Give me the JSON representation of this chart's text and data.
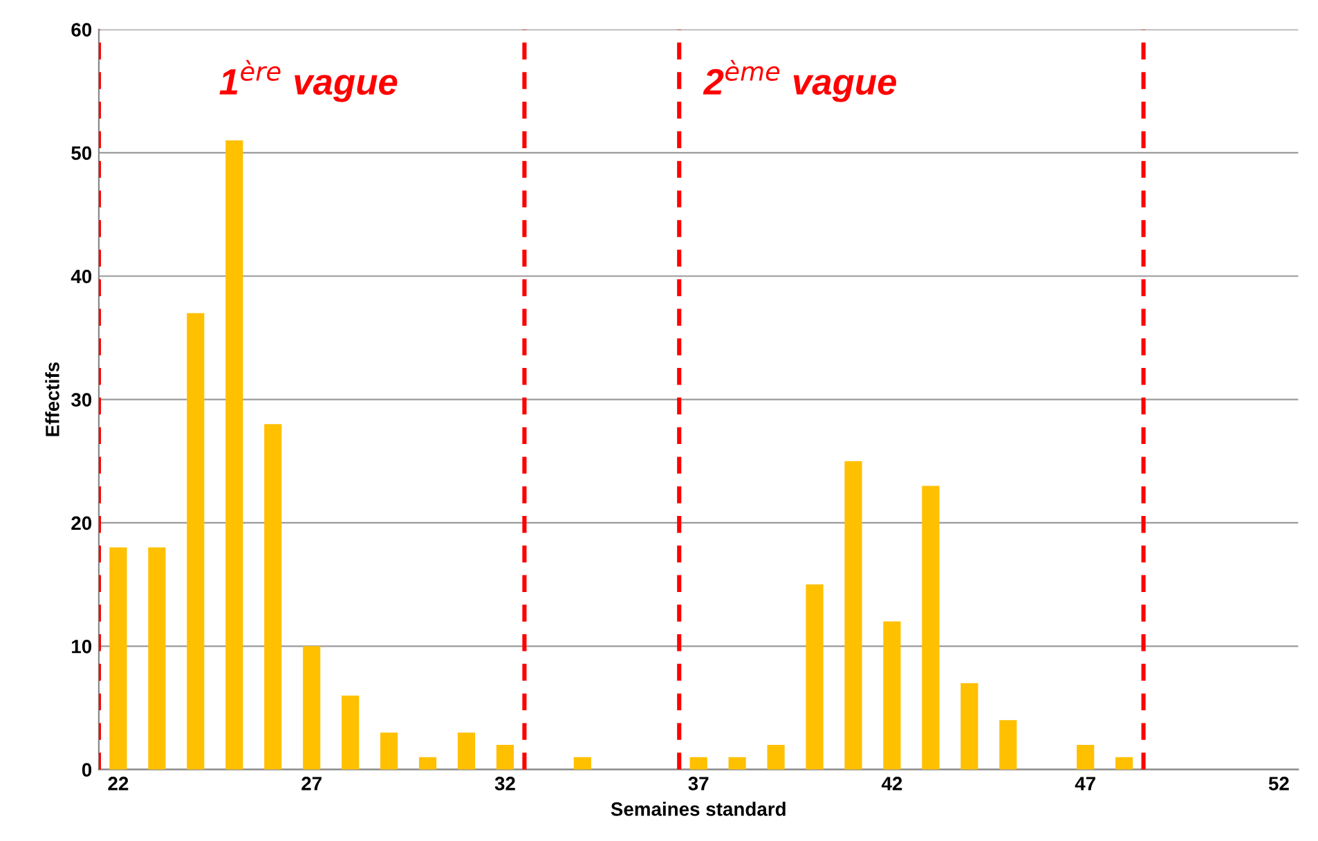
{
  "chart_data": {
    "type": "bar",
    "xlabel": "Semaines standard",
    "ylabel": "Effectifs",
    "x": [
      22,
      23,
      24,
      25,
      26,
      27,
      28,
      29,
      30,
      31,
      32,
      33,
      34,
      35,
      36,
      37,
      38,
      39,
      40,
      41,
      42,
      43,
      44,
      45,
      46,
      47,
      48,
      49,
      50,
      51,
      52
    ],
    "values": [
      18,
      18,
      37,
      51,
      28,
      10,
      6,
      3,
      1,
      3,
      2,
      0,
      1,
      0,
      0,
      1,
      1,
      2,
      15,
      25,
      12,
      23,
      7,
      4,
      0,
      2,
      1,
      0,
      0,
      0,
      0
    ],
    "color": "#ffc000",
    "xlim": [
      21.5,
      52.5
    ],
    "xticks": [
      22,
      27,
      32,
      37,
      42,
      47,
      52
    ],
    "ylim": [
      0,
      60
    ],
    "yticks": [
      0,
      10,
      20,
      30,
      40,
      50,
      60
    ],
    "grid": "y",
    "ref_lines": [
      {
        "axis": "x",
        "value": 21.5,
        "color": "#ff0000",
        "line_style": "dashed"
      },
      {
        "axis": "x",
        "value": 32.5,
        "color": "#ff0000",
        "line_style": "dashed"
      },
      {
        "axis": "x",
        "value": 36.5,
        "color": "#ff0000",
        "line_style": "dashed"
      },
      {
        "axis": "x",
        "value": 48.5,
        "color": "#ff0000",
        "line_style": "dashed"
      }
    ],
    "annotations": [
      "1$^{ère}$ vague",
      "2$^{ème}$ vague"
    ]
  }
}
